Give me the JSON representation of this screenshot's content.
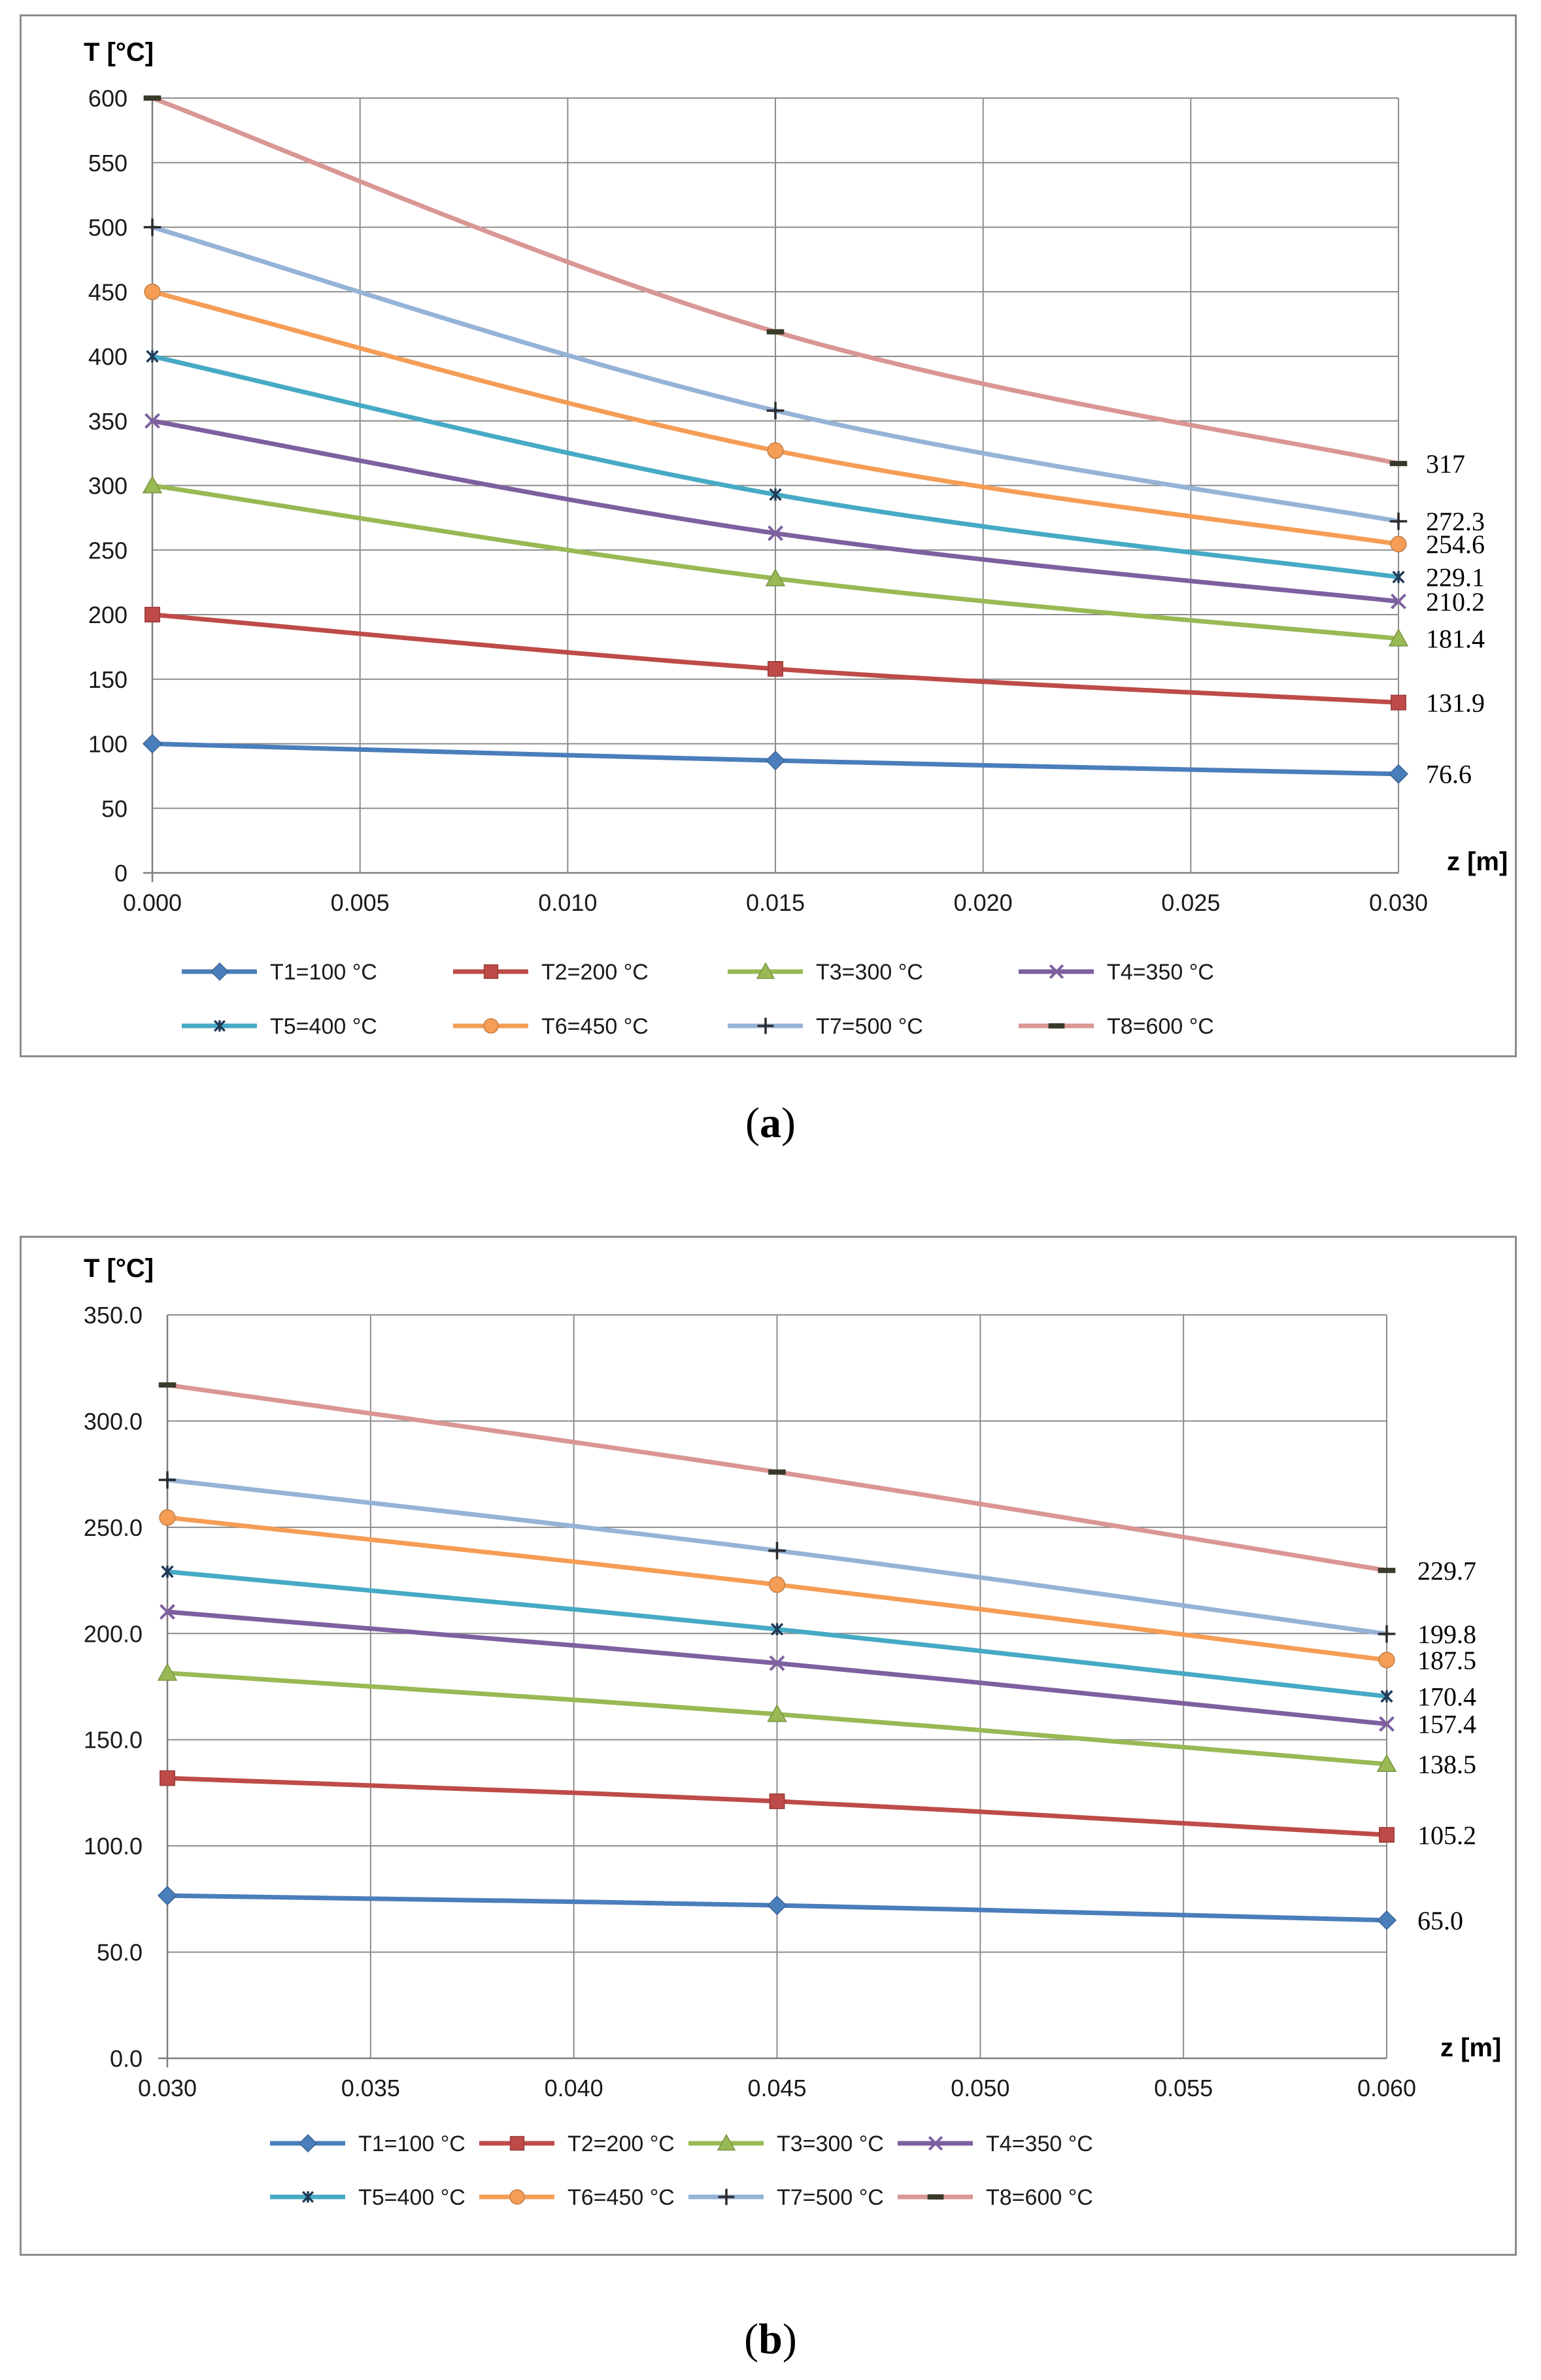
{
  "chart_data": [
    {
      "type": "line",
      "panel": "a",
      "caption": "a",
      "ylabel": "T [°C]",
      "xlabel": "z [m]",
      "ylim": [
        0,
        600
      ],
      "yticks": [
        0,
        50,
        100,
        150,
        200,
        250,
        300,
        350,
        400,
        450,
        500,
        550,
        600
      ],
      "ytick_labels": [
        "0",
        "50",
        "100",
        "150",
        "200",
        "250",
        "300",
        "350",
        "400",
        "450",
        "500",
        "550",
        "600"
      ],
      "xlim": [
        0.0,
        0.03
      ],
      "xticks": [
        0.0,
        0.005,
        0.01,
        0.015,
        0.02,
        0.025,
        0.03
      ],
      "xtick_labels": [
        "0.000",
        "0.005",
        "0.010",
        "0.015",
        "0.020",
        "0.025",
        "0.030"
      ],
      "x": [
        0.0,
        0.015,
        0.03
      ],
      "grid": true,
      "legend_position": "bottom",
      "series": [
        {
          "name": "T1=100 °C",
          "color": "#4a7ebb",
          "marker": "diamond",
          "values": [
            100,
            87,
            76.6
          ],
          "end_label": "76.6"
        },
        {
          "name": "T2=200 °C",
          "color": "#be4b48",
          "marker": "square",
          "values": [
            200,
            158,
            131.9
          ],
          "end_label": "131.9"
        },
        {
          "name": "T3=300 °C",
          "color": "#98b954",
          "marker": "triangle",
          "values": [
            300,
            228,
            181.4
          ],
          "end_label": "181.4"
        },
        {
          "name": "T4=350 °C",
          "color": "#7d60a0",
          "marker": "x",
          "values": [
            350,
            263,
            210.2
          ],
          "end_label": "210.2"
        },
        {
          "name": "T5=400 °C",
          "color": "#46aac5",
          "marker": "star",
          "values": [
            400,
            293,
            229.1
          ],
          "end_label": "229.1"
        },
        {
          "name": "T6=450 °C",
          "color": "#f59d56",
          "marker": "circle",
          "values": [
            450,
            327,
            254.6
          ],
          "end_label": "254.6"
        },
        {
          "name": "T7=500 °C",
          "color": "#95b3d7",
          "marker": "plus",
          "values": [
            500,
            358,
            272.3
          ],
          "end_label": "272.3"
        },
        {
          "name": "T8=600 °C",
          "color": "#d99694",
          "marker": "dash",
          "values": [
            600,
            419,
            317
          ],
          "end_label": "317"
        }
      ]
    },
    {
      "type": "line",
      "panel": "b",
      "caption": "b",
      "ylabel": "T [°C]",
      "xlabel": "z [m]",
      "ylim": [
        0,
        350
      ],
      "yticks": [
        0,
        50,
        100,
        150,
        200,
        250,
        300,
        350
      ],
      "ytick_labels": [
        "0.0",
        "50.0",
        "100.0",
        "150.0",
        "200.0",
        "250.0",
        "300.0",
        "350.0"
      ],
      "xlim": [
        0.03,
        0.06
      ],
      "xticks": [
        0.03,
        0.035,
        0.04,
        0.045,
        0.05,
        0.055,
        0.06
      ],
      "xtick_labels": [
        "0.030",
        "0.035",
        "0.040",
        "0.045",
        "0.050",
        "0.055",
        "0.060"
      ],
      "x": [
        0.03,
        0.045,
        0.06
      ],
      "grid": true,
      "legend_position": "bottom",
      "series": [
        {
          "name": "T1=100 °C",
          "color": "#4a7ebb",
          "marker": "diamond",
          "values": [
            76.6,
            72,
            65.0
          ],
          "end_label": "65.0"
        },
        {
          "name": "T2=200 °C",
          "color": "#be4b48",
          "marker": "square",
          "values": [
            131.9,
            121,
            105.2
          ],
          "end_label": "105.2"
        },
        {
          "name": "T3=300 °C",
          "color": "#98b954",
          "marker": "triangle",
          "values": [
            181.4,
            162,
            138.5
          ],
          "end_label": "138.5"
        },
        {
          "name": "T4=350 °C",
          "color": "#7d60a0",
          "marker": "x",
          "values": [
            210.2,
            186,
            157.4
          ],
          "end_label": "157.4"
        },
        {
          "name": "T5=400 °C",
          "color": "#46aac5",
          "marker": "star",
          "values": [
            229.1,
            202,
            170.4
          ],
          "end_label": "170.4"
        },
        {
          "name": "T6=450 °C",
          "color": "#f59d56",
          "marker": "circle",
          "values": [
            254.6,
            223,
            187.5
          ],
          "end_label": "187.5"
        },
        {
          "name": "T7=500 °C",
          "color": "#95b3d7",
          "marker": "plus",
          "values": [
            272.3,
            239,
            199.8
          ],
          "end_label": "199.8"
        },
        {
          "name": "T8=600 °C",
          "color": "#d99694",
          "marker": "dash",
          "values": [
            317,
            276,
            229.7
          ],
          "end_label": "229.7"
        }
      ]
    }
  ]
}
